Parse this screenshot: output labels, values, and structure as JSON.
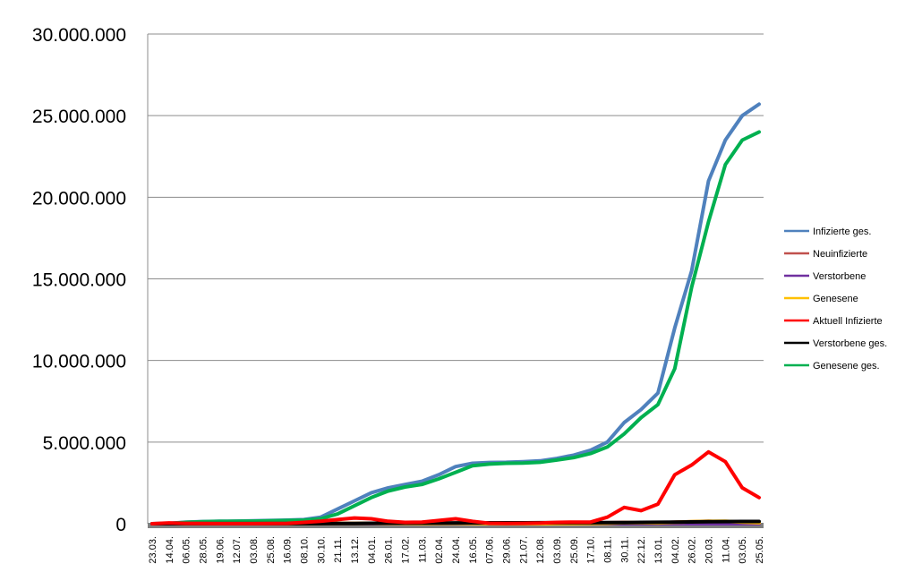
{
  "chart_data": {
    "type": "line",
    "title": "",
    "xlabel": "",
    "ylabel": "",
    "ylim": [
      0,
      30000000
    ],
    "y_ticks": [
      "0",
      "5.000.000",
      "10.000.000",
      "15.000.000",
      "20.000.000",
      "25.000.000",
      "30.000.000"
    ],
    "grid": true,
    "legend_position": "right",
    "x_labels": [
      "23.03.",
      "14.04.",
      "06.05.",
      "28.05.",
      "19.06.",
      "12.07.",
      "03.08.",
      "25.08.",
      "16.09.",
      "08.10.",
      "30.10.",
      "21.11.",
      "13.12.",
      "04.01.",
      "26.01.",
      "17.02.",
      "11.03.",
      "02.04.",
      "24.04.",
      "16.05.",
      "07.06.",
      "29.06.",
      "21.07.",
      "12.08.",
      "03.09.",
      "25.09.",
      "17.10.",
      "08.11.",
      "30.11.",
      "22.12.",
      "13.01.",
      "04.02.",
      "26.02.",
      "20.03.",
      "11.04.",
      "03.05.",
      "25.05."
    ],
    "series": [
      {
        "name": "Infizierte ges.",
        "color": "#4f81bd",
        "values": [
          0,
          20000,
          100000,
          130000,
          150000,
          160000,
          180000,
          200000,
          220000,
          250000,
          400000,
          900000,
          1400000,
          1900000,
          2200000,
          2400000,
          2600000,
          3000000,
          3500000,
          3700000,
          3750000,
          3760000,
          3800000,
          3850000,
          4000000,
          4200000,
          4500000,
          5000000,
          6200000,
          7000000,
          8000000,
          12000000,
          15500000,
          21000000,
          23500000,
          25000000,
          25700000
        ]
      },
      {
        "name": "Neuinfizierte",
        "color": "#c0504d",
        "values": [
          0,
          2000,
          500,
          300,
          300,
          400,
          500,
          800,
          1000,
          3000,
          8000,
          15000,
          20000,
          25000,
          15000,
          8000,
          10000,
          20000,
          25000,
          8000,
          1000,
          500,
          1000,
          2000,
          5000,
          10000,
          20000,
          60000,
          80000,
          50000,
          50000,
          100000,
          120000,
          150000,
          100000,
          60000,
          20000
        ]
      },
      {
        "name": "Verstorbene",
        "color": "#7030a0",
        "values": [
          0,
          100,
          50,
          20,
          10,
          10,
          10,
          10,
          20,
          50,
          100,
          200,
          300,
          400,
          300,
          200,
          200,
          300,
          400,
          200,
          50,
          20,
          20,
          30,
          50,
          100,
          200,
          400,
          600,
          500,
          400,
          500,
          600,
          700,
          600,
          400,
          200
        ]
      },
      {
        "name": "Genesene",
        "color": "#ffc000",
        "values": [
          0,
          500,
          2000,
          1000,
          500,
          300,
          300,
          500,
          800,
          1500,
          4000,
          10000,
          15000,
          20000,
          15000,
          10000,
          8000,
          15000,
          20000,
          15000,
          5000,
          1000,
          800,
          1500,
          3000,
          8000,
          15000,
          30000,
          60000,
          60000,
          50000,
          80000,
          120000,
          140000,
          150000,
          100000,
          60000
        ]
      },
      {
        "name": "Aktuell Infizierte",
        "color": "#ff0000",
        "values": [
          0,
          50000,
          20000,
          10000,
          5000,
          3000,
          5000,
          10000,
          20000,
          80000,
          150000,
          250000,
          350000,
          300000,
          150000,
          80000,
          100000,
          200000,
          300000,
          150000,
          30000,
          10000,
          20000,
          40000,
          80000,
          100000,
          100000,
          400000,
          1000000,
          800000,
          1200000,
          3000000,
          3600000,
          4400000,
          3800000,
          2200000,
          1600000
        ]
      },
      {
        "name": "Verstorbene ges.",
        "color": "#000000",
        "values": [
          0,
          2000,
          4000,
          5000,
          5000,
          5000,
          5000,
          5000,
          5000,
          6000,
          8000,
          12000,
          18000,
          25000,
          33000,
          38000,
          42000,
          45000,
          50000,
          55000,
          56000,
          57000,
          57000,
          58000,
          59000,
          60000,
          62000,
          66000,
          72000,
          80000,
          90000,
          100000,
          110000,
          120000,
          130000,
          135000,
          138000
        ]
      },
      {
        "name": "Genesene ges.",
        "color": "#00b050",
        "values": [
          0,
          10000,
          80000,
          120000,
          140000,
          150000,
          160000,
          180000,
          200000,
          220000,
          300000,
          600000,
          1100000,
          1600000,
          2000000,
          2250000,
          2400000,
          2750000,
          3150000,
          3550000,
          3650000,
          3700000,
          3720000,
          3760000,
          3900000,
          4050000,
          4300000,
          4700000,
          5500000,
          6500000,
          7300000,
          9500000,
          14500000,
          18500000,
          22000000,
          23500000,
          24000000
        ]
      }
    ]
  }
}
